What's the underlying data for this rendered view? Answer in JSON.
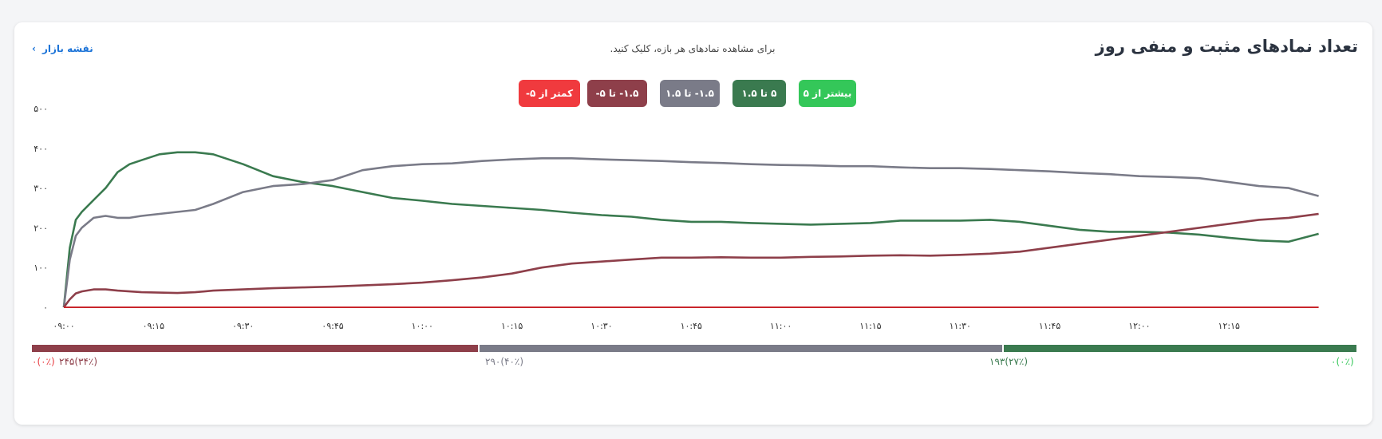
{
  "header": {
    "title": "تعداد نمادهای مثبت و منفی روز",
    "hint": "برای مشاهده نمادهای هر بازه، کلیک کنید.",
    "market_map_link": "نقشه بازار"
  },
  "legend": [
    {
      "label": "بیشتر از ۵",
      "color": "#34c759"
    },
    {
      "label": "۵ تا ۱.۵",
      "color": "#3a7a4f"
    },
    {
      "label": "۱.۵- تا ۱.۵",
      "color": "#7a7b88"
    },
    {
      "label": "۱.۵- تا ۵-",
      "color": "#8e3f4a"
    },
    {
      "label": "کمتر از ۵-",
      "color": "#f03a3e"
    }
  ],
  "chart_data": {
    "type": "line",
    "x_ticks": [
      "۰۹:۰۰",
      "۰۹:۱۵",
      "۰۹:۳۰",
      "۰۹:۴۵",
      "۱۰:۰۰",
      "۱۰:۱۵",
      "۱۰:۳۰",
      "۱۰:۴۵",
      "۱۱:۰۰",
      "۱۱:۱۵",
      "۱۱:۳۰",
      "۱۱:۴۵",
      "۱۲:۰۰",
      "۱۲:۱۵"
    ],
    "y_ticks": [
      "۰",
      "۱۰۰",
      "۲۰۰",
      "۳۰۰",
      "۴۰۰",
      "۵۰۰"
    ],
    "ylim": [
      0,
      500
    ],
    "x_unit": "minutes since 09:00",
    "x": [
      0,
      1,
      2,
      3,
      5,
      7,
      9,
      11,
      13,
      16,
      19,
      22,
      25,
      30,
      35,
      40,
      45,
      50,
      55,
      60,
      65,
      70,
      75,
      80,
      85,
      90,
      95,
      100,
      105,
      110,
      115,
      120,
      125,
      130,
      135,
      140,
      145,
      150,
      155,
      160,
      165,
      170,
      175,
      180,
      185,
      190,
      195,
      200,
      205,
      210
    ],
    "series": [
      {
        "name": "۵ تا ۱.۵",
        "color": "#3a7a4f",
        "values": [
          0,
          150,
          220,
          240,
          270,
          300,
          340,
          360,
          370,
          385,
          390,
          390,
          385,
          360,
          330,
          315,
          305,
          290,
          275,
          268,
          260,
          255,
          250,
          245,
          238,
          232,
          228,
          220,
          215,
          215,
          212,
          210,
          208,
          210,
          212,
          218,
          218,
          218,
          220,
          215,
          205,
          195,
          190,
          190,
          188,
          183,
          175,
          168,
          165,
          185
        ]
      },
      {
        "name": "۱.۵- تا ۱.۵",
        "color": "#7a7b88",
        "values": [
          0,
          120,
          180,
          200,
          225,
          230,
          225,
          225,
          230,
          235,
          240,
          245,
          260,
          290,
          305,
          310,
          320,
          345,
          355,
          360,
          362,
          368,
          372,
          375,
          375,
          372,
          370,
          368,
          365,
          363,
          360,
          358,
          357,
          355,
          355,
          352,
          350,
          350,
          348,
          345,
          342,
          338,
          335,
          330,
          328,
          325,
          315,
          305,
          300,
          280
        ]
      },
      {
        "name": "۱.۵- تا ۵-",
        "color": "#8e3f4a",
        "values": [
          0,
          20,
          35,
          40,
          45,
          45,
          42,
          40,
          38,
          37,
          36,
          38,
          42,
          45,
          48,
          50,
          52,
          55,
          58,
          62,
          68,
          75,
          85,
          100,
          110,
          115,
          120,
          125,
          125,
          126,
          125,
          125,
          127,
          128,
          130,
          131,
          130,
          132,
          135,
          140,
          150,
          160,
          170,
          180,
          190,
          200,
          210,
          220,
          225,
          235
        ]
      },
      {
        "name": "کمتر از ۵-",
        "color": "#c9252b",
        "values": [
          0,
          0,
          0,
          0,
          0,
          0,
          0,
          0,
          0,
          0,
          0,
          0,
          0,
          0,
          0,
          0,
          0,
          0,
          0,
          0,
          0,
          0,
          0,
          0,
          0,
          0,
          0,
          0,
          0,
          0,
          0,
          0,
          0,
          0,
          0,
          0,
          0,
          0,
          0,
          0,
          0,
          0,
          0,
          0,
          0,
          0,
          0,
          0,
          0,
          0
        ]
      }
    ]
  },
  "distribution": {
    "segments": [
      {
        "name": "negative",
        "percent": 34,
        "color": "#8e3f4a"
      },
      {
        "name": "neutral",
        "percent": 40,
        "color": "#7a7b88"
      },
      {
        "name": "positive",
        "percent": 27,
        "color": "#3a7a4f"
      }
    ],
    "labels": {
      "strong_negative": "۰(۰٪)",
      "strong_negative_color": "#e83b40",
      "negative": "۲۴۵(۳۴٪)",
      "negative_color": "#8e3f4a",
      "neutral": "۲۹۰(۴۰٪)",
      "neutral_color": "#7a7b88",
      "positive": "۱۹۳(۲۷٪)",
      "positive_color": "#3a7a4f",
      "strong_positive": "۰(۰٪)",
      "strong_positive_color": "#34c759"
    }
  }
}
